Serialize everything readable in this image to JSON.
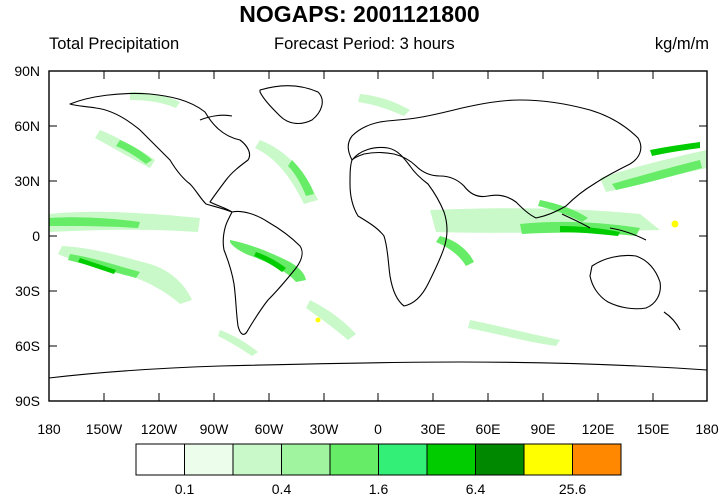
{
  "title": "NOGAPS: 2001121800",
  "left_label": "Total Precipitation",
  "center_label": "Forecast Period: 3 hours",
  "units": "kg/m/m",
  "lat_ticks": [
    "90N",
    "60N",
    "30N",
    "0",
    "30S",
    "60S",
    "90S"
  ],
  "lon_ticks": [
    "180",
    "150W",
    "120W",
    "90W",
    "60W",
    "30W",
    "0",
    "30E",
    "60E",
    "90E",
    "120E",
    "150E",
    "180"
  ],
  "colorbar": {
    "labels": [
      "0.1",
      "0.4",
      "1.6",
      "6.4",
      "25.6"
    ],
    "colors": [
      "#ffffff",
      "#ecfdec",
      "#c9f9c9",
      "#a0f4a0",
      "#66ec66",
      "#33ee77",
      "#00cc00",
      "#008800",
      "#ffff00",
      "#ff8800"
    ]
  },
  "colors": {
    "land_outline": "#000000",
    "light_precip": "#c9f9c9",
    "medium_precip": "#66ec66",
    "heavy_precip": "#00cc00"
  }
}
